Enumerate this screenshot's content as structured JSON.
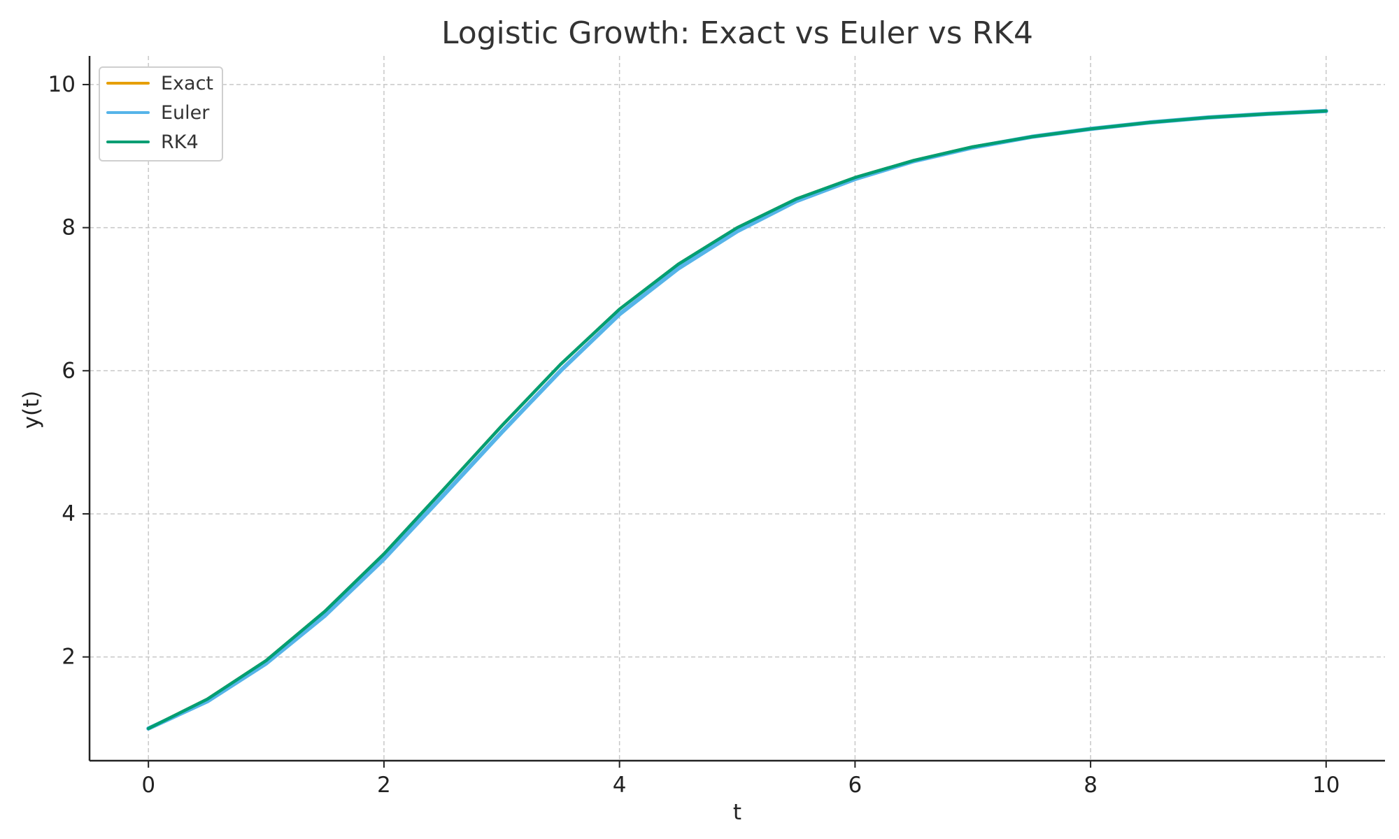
{
  "chart_data": {
    "type": "line",
    "title": "Logistic Growth: Exact vs Euler vs RK4",
    "xlabel": "t",
    "ylabel": "y(t)",
    "xlim": [
      -0.5,
      10.5
    ],
    "ylim": [
      0.55,
      10.4
    ],
    "x_ticks": [
      0,
      2,
      4,
      6,
      8,
      10
    ],
    "y_ticks": [
      2,
      4,
      6,
      8,
      10
    ],
    "grid": true,
    "legend_position": "top-left",
    "x": [
      0,
      0.5,
      1,
      1.5,
      2,
      2.5,
      3,
      3.5,
      4,
      4.5,
      5,
      5.5,
      6,
      6.5,
      7,
      7.5,
      8,
      8.5,
      9,
      9.5,
      10
    ],
    "series": [
      {
        "name": "Exact",
        "color": "#E69F00",
        "values": [
          1.0,
          1.41,
          1.95,
          2.64,
          3.44,
          4.33,
          5.23,
          6.09,
          6.86,
          7.49,
          8.0,
          8.4,
          8.7,
          8.94,
          9.13,
          9.27,
          9.38,
          9.47,
          9.54,
          9.59,
          9.63
        ]
      },
      {
        "name": "Euler",
        "color": "#56B4E9",
        "values": [
          1.0,
          1.38,
          1.91,
          2.58,
          3.37,
          4.25,
          5.14,
          6.0,
          6.79,
          7.43,
          7.95,
          8.37,
          8.68,
          8.93,
          9.12,
          9.27,
          9.38,
          9.47,
          9.54,
          9.59,
          9.63
        ]
      },
      {
        "name": "RK4",
        "color": "#009E73",
        "values": [
          1.0,
          1.41,
          1.95,
          2.64,
          3.44,
          4.33,
          5.23,
          6.09,
          6.86,
          7.49,
          8.0,
          8.4,
          8.7,
          8.94,
          9.13,
          9.27,
          9.38,
          9.47,
          9.54,
          9.59,
          9.63
        ]
      }
    ]
  }
}
